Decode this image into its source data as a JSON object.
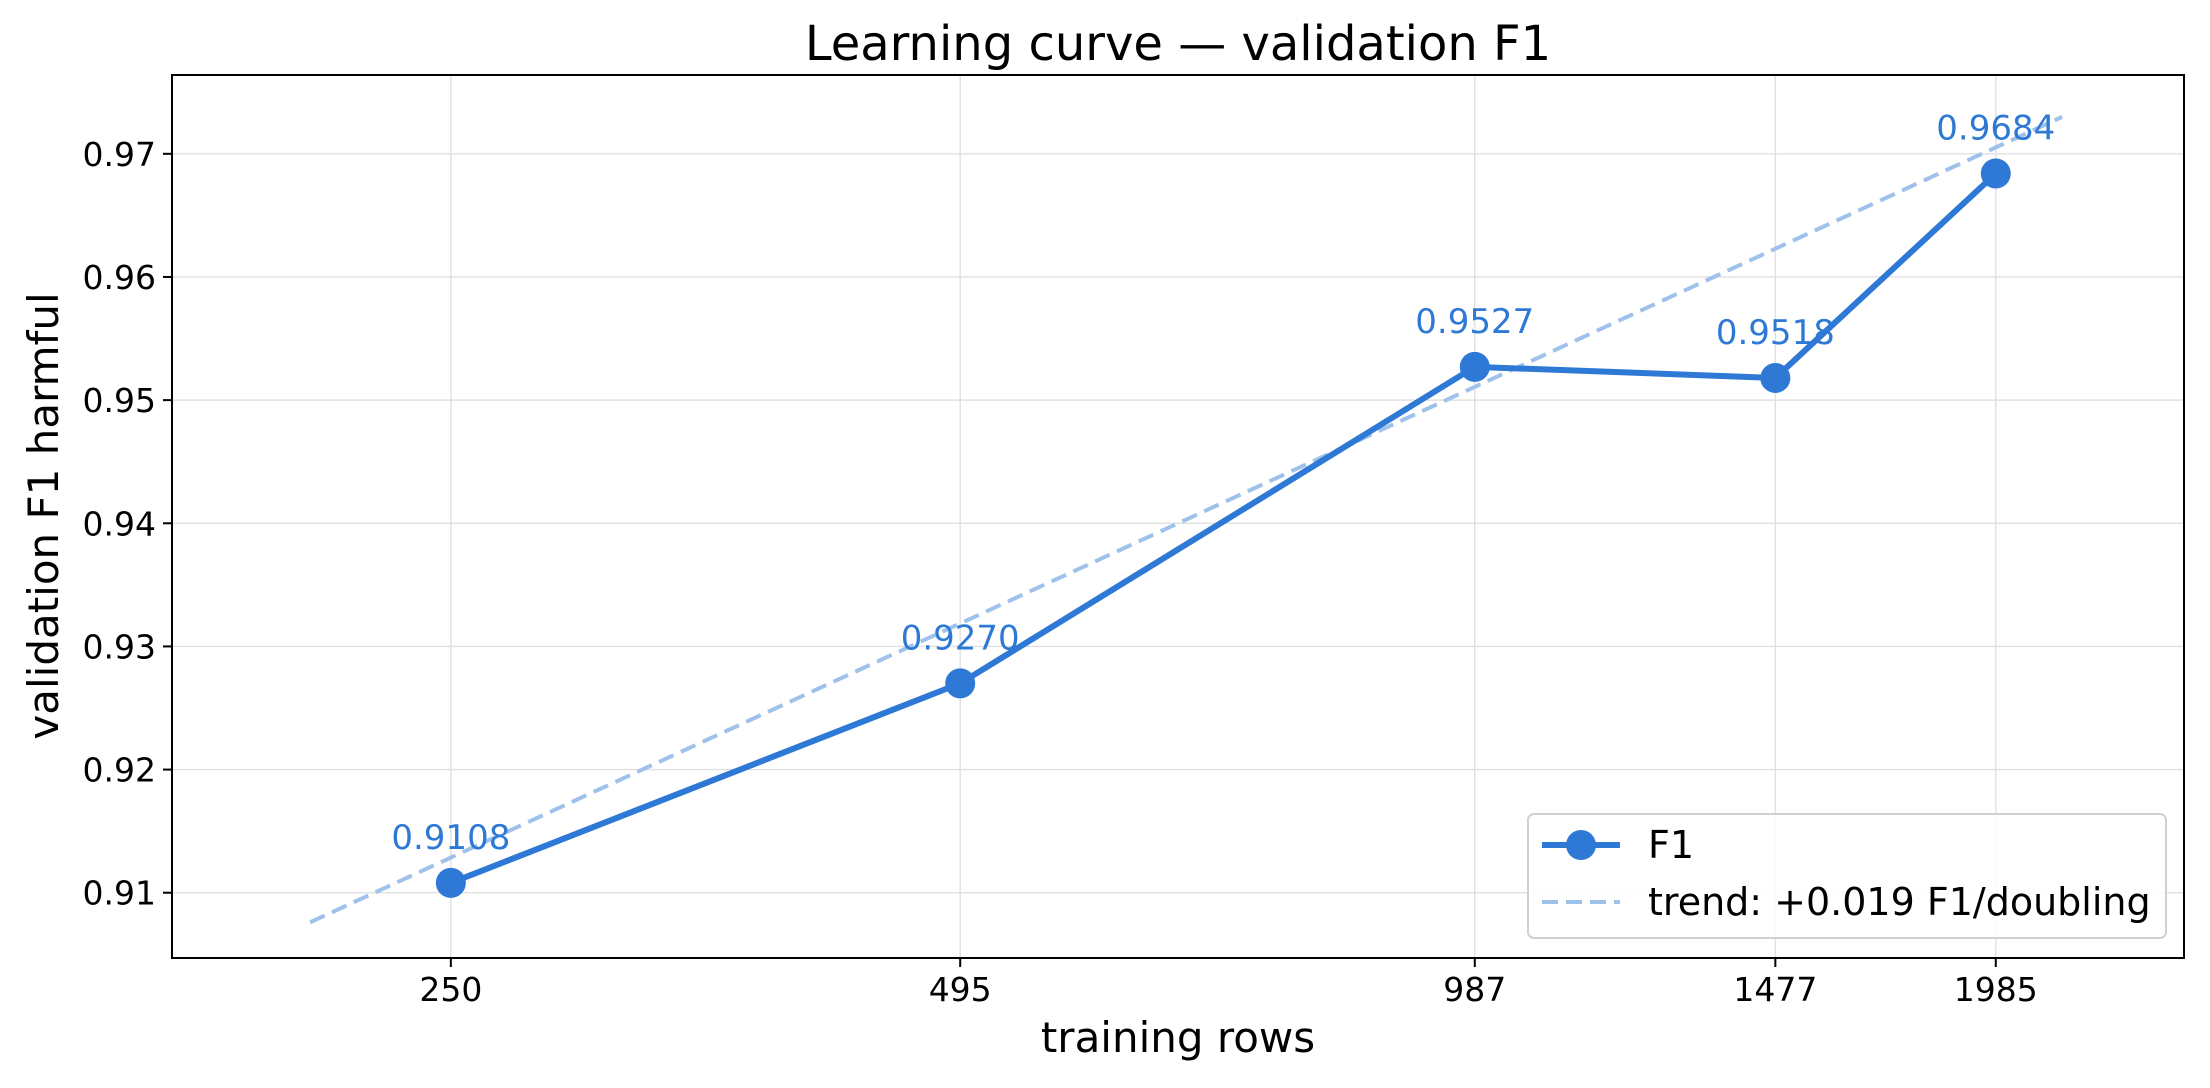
{
  "chart_data": {
    "type": "line",
    "title": "Learning curve — validation F1",
    "xlabel": "training rows",
    "ylabel": "validation F1 harmful",
    "x_scale": "log2",
    "x": [
      250,
      495,
      987,
      1477,
      1985
    ],
    "x_tick_labels": [
      "250",
      "495",
      "987",
      "1477",
      "1985"
    ],
    "y_ticks": [
      0.91,
      0.92,
      0.93,
      0.94,
      0.95,
      0.96,
      0.97
    ],
    "y_tick_labels": [
      "0.91",
      "0.92",
      "0.93",
      "0.94",
      "0.95",
      "0.96",
      "0.97"
    ],
    "ylim": [
      0.9047,
      0.9764
    ],
    "xlim": [
      172,
      2555
    ],
    "grid": true,
    "legend_position": "lower right",
    "series": [
      {
        "name": "F1",
        "style": "solid line with circle markers",
        "color": "#2e78d6",
        "values": [
          0.9108,
          0.927,
          0.9527,
          0.9518,
          0.9684
        ],
        "data_labels": [
          "0.9108",
          "0.9270",
          "0.9527",
          "0.9518",
          "0.9684"
        ]
      },
      {
        "name": "trend: +0.019 F1/doubling",
        "style": "dashed line",
        "color": "#9fc2ea",
        "x": [
          207,
          2170
        ],
        "values": [
          0.9076,
          0.973
        ]
      }
    ]
  }
}
